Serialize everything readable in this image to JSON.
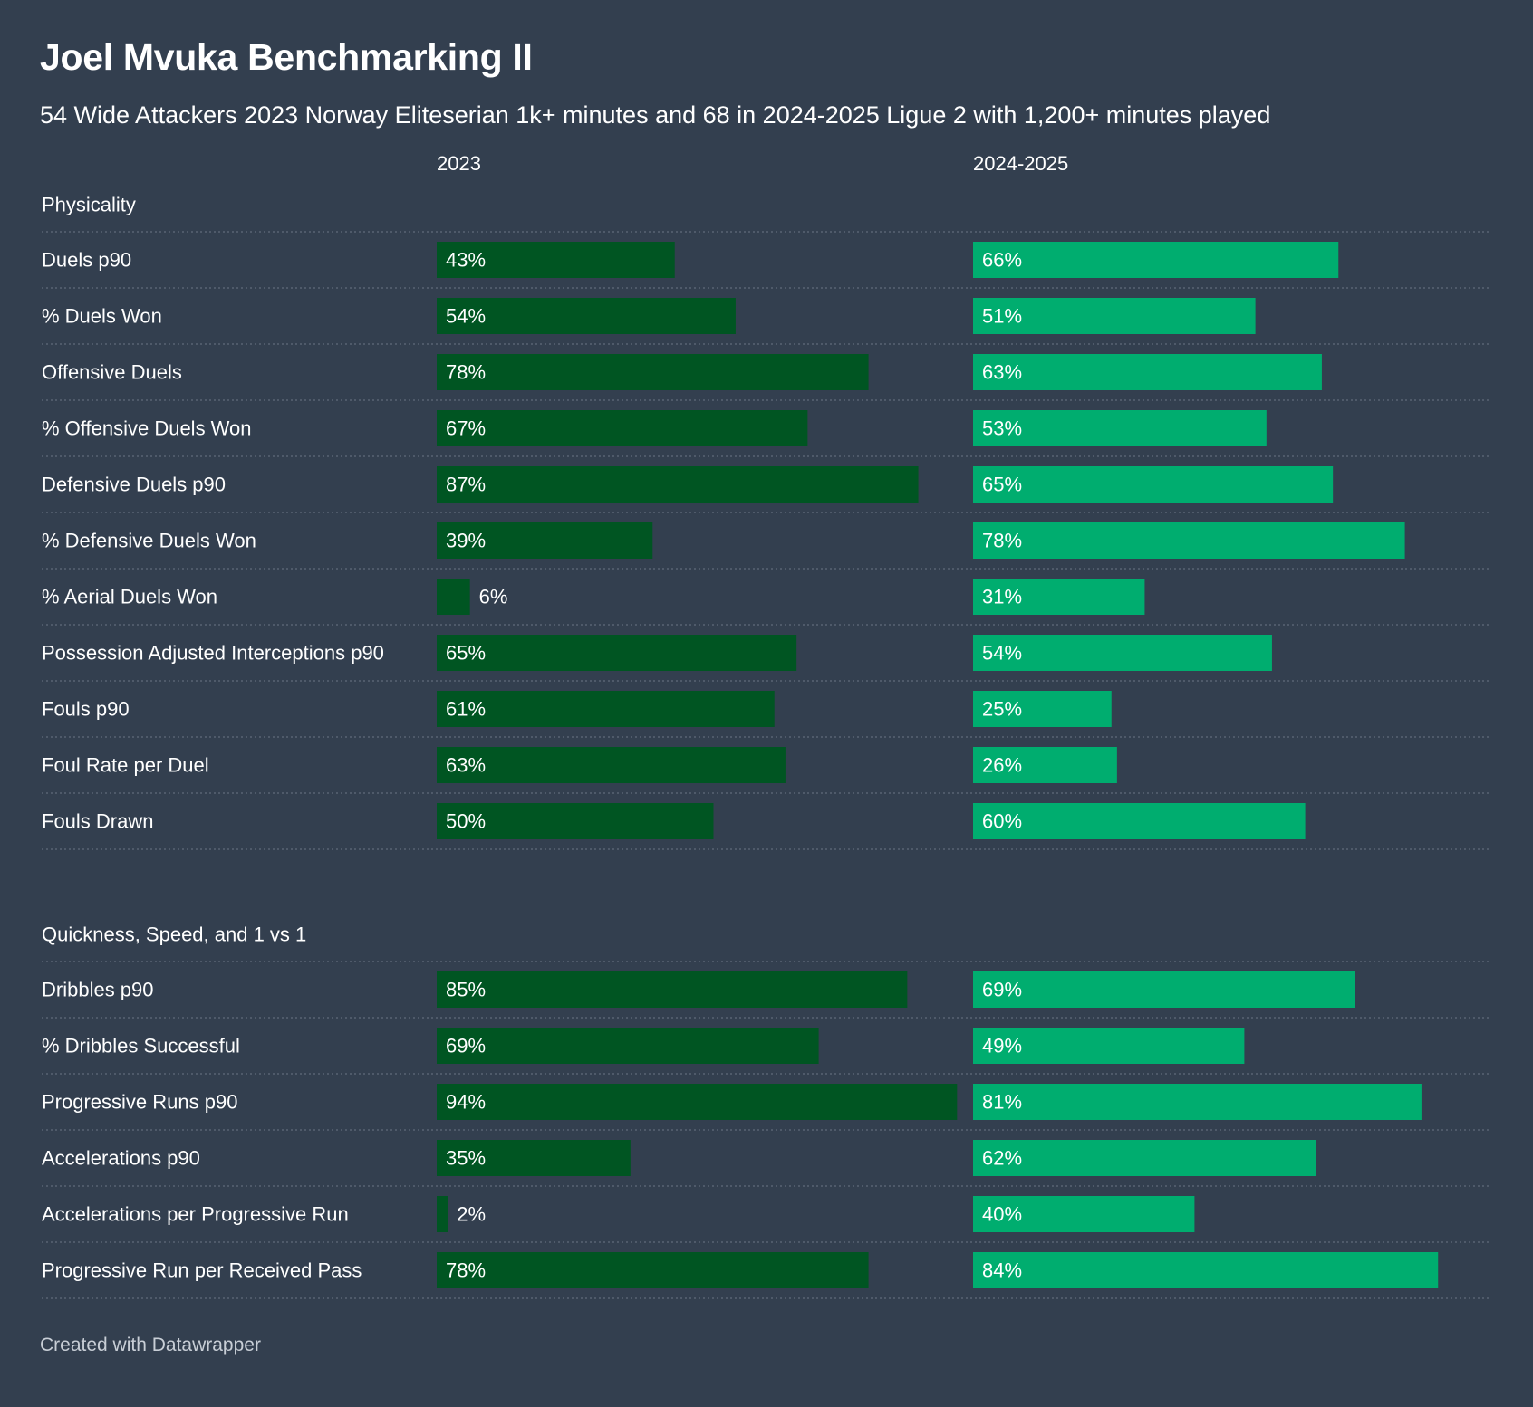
{
  "header": {
    "title": "Joel Mvuka Benchmarking II",
    "subtitle": "54 Wide Attackers 2023 Norway Eliteserian 1k+ minutes and 68 in 2024-2025 Ligue 2 with 1,200+ minutes played"
  },
  "footer": {
    "credit": "Created with Datawrapper"
  },
  "colors": {
    "background": "#333f4f",
    "series_2023": "#005522",
    "series_2024_2025": "#00ad6f",
    "text": "#ffffff",
    "divider": "#6b7685"
  },
  "chart_data": {
    "type": "bar",
    "orientation": "horizontal",
    "value_format": "percent",
    "xlim": [
      0,
      100
    ],
    "series": [
      {
        "name": "2023"
      },
      {
        "name": "2024-2025"
      }
    ],
    "groups": [
      {
        "name": "Physicality",
        "rows": [
          {
            "label": "Duels p90",
            "values": [
              43,
              66
            ]
          },
          {
            "label": "% Duels Won",
            "values": [
              54,
              51
            ]
          },
          {
            "label": "Offensive Duels",
            "values": [
              78,
              63
            ]
          },
          {
            "label": "% Offensive Duels Won",
            "values": [
              67,
              53
            ]
          },
          {
            "label": "Defensive Duels p90",
            "values": [
              87,
              65
            ]
          },
          {
            "label": "% Defensive Duels Won",
            "values": [
              39,
              78
            ]
          },
          {
            "label": "% Aerial Duels Won",
            "values": [
              6,
              31
            ]
          },
          {
            "label": "Possession Adjusted Interceptions p90",
            "values": [
              65,
              54
            ]
          },
          {
            "label": "Fouls p90",
            "values": [
              61,
              25
            ]
          },
          {
            "label": "Foul Rate per Duel",
            "values": [
              63,
              26
            ]
          },
          {
            "label": "Fouls Drawn",
            "values": [
              50,
              60
            ]
          }
        ]
      },
      {
        "name": "Quickness, Speed, and 1 vs 1",
        "rows": [
          {
            "label": "Dribbles p90",
            "values": [
              85,
              69
            ]
          },
          {
            "label": "% Dribbles Successful",
            "values": [
              69,
              49
            ]
          },
          {
            "label": "Progressive Runs p90",
            "values": [
              94,
              81
            ]
          },
          {
            "label": "Accelerations p90",
            "values": [
              35,
              62
            ]
          },
          {
            "label": "Accelerations per Progressive Run",
            "values": [
              2,
              40
            ]
          },
          {
            "label": "Progressive Run per Received Pass",
            "values": [
              78,
              84
            ]
          }
        ]
      }
    ]
  }
}
